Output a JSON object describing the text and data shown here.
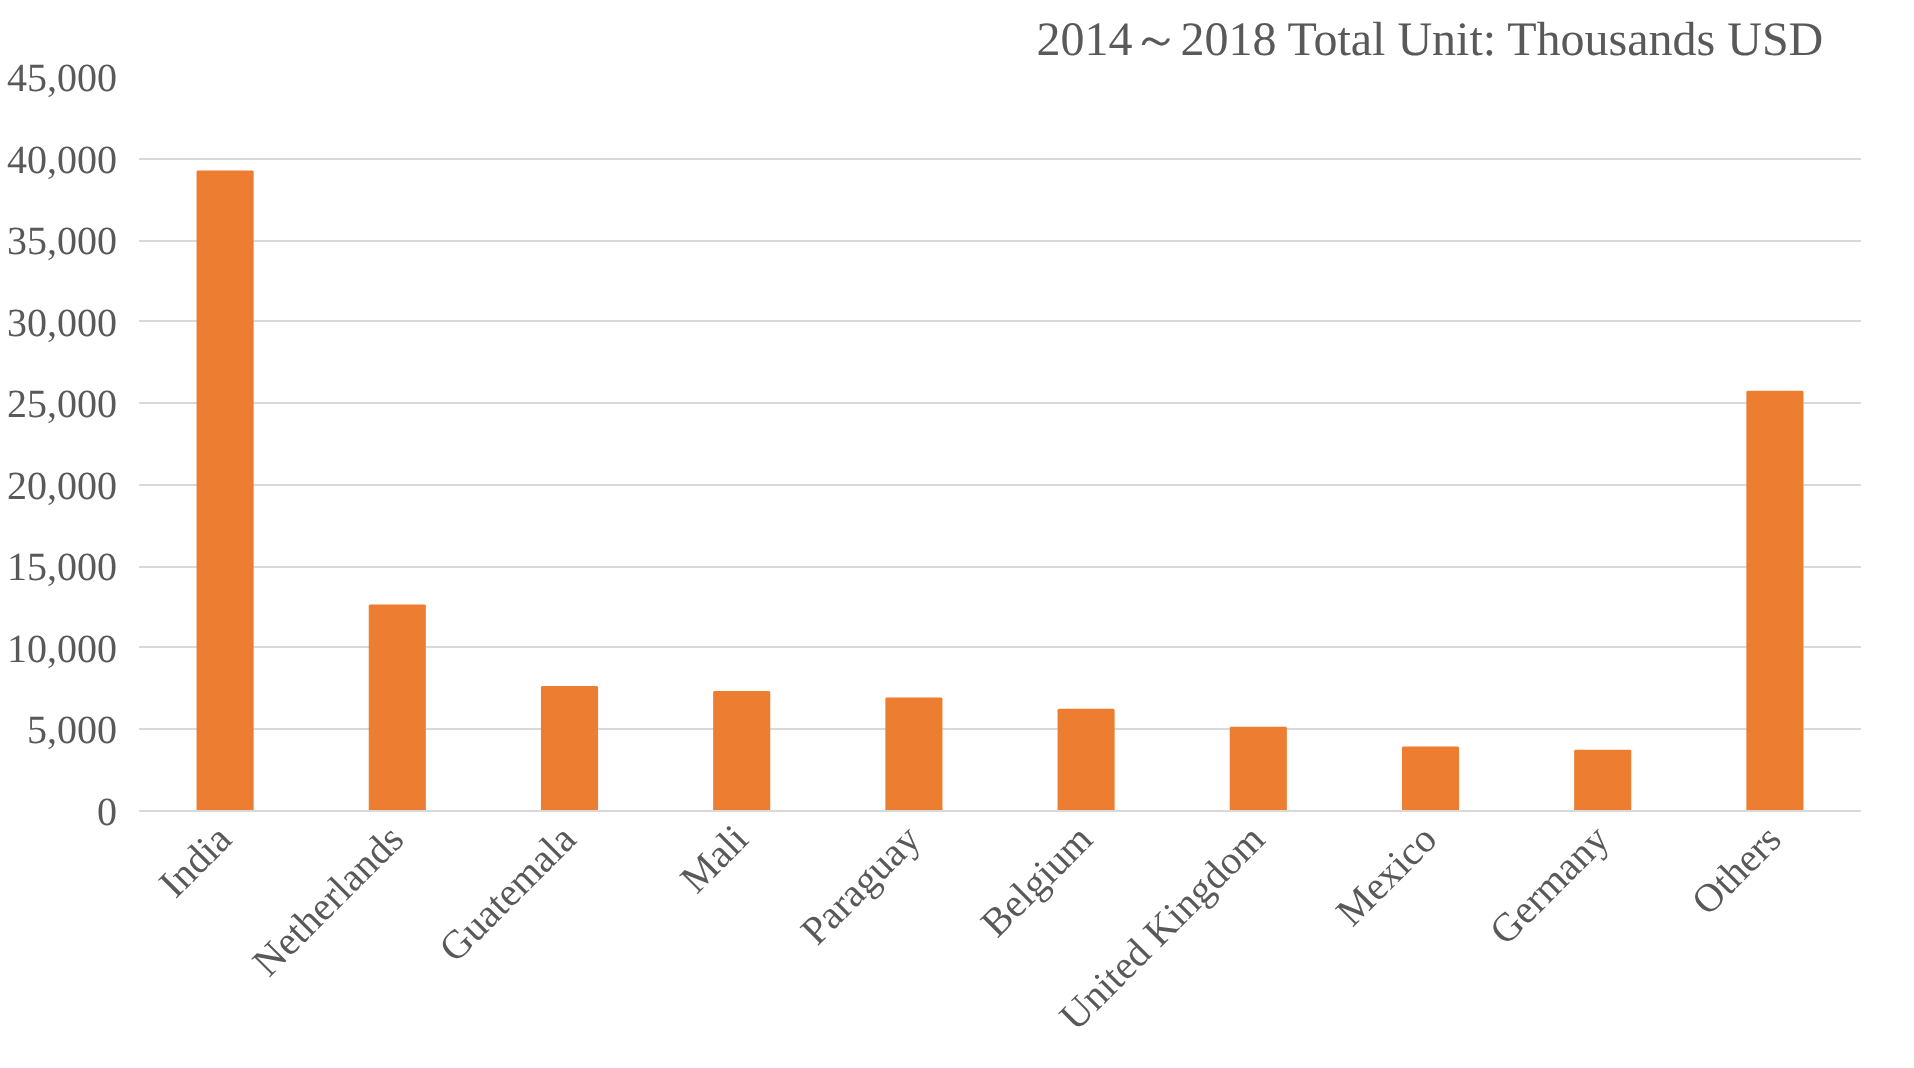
{
  "chart_data": {
    "type": "bar",
    "title": "2014～2018 Total",
    "annotations": [
      "Unit: Thousands USD"
    ],
    "categories": [
      "India",
      "Netherlands",
      "Guatemala",
      "Mali",
      "Paraguay",
      "Belgium",
      "United Kingdom",
      "Mexico",
      "Germany",
      "Others"
    ],
    "values": [
      39200,
      12600,
      7600,
      7300,
      6900,
      6200,
      5100,
      3900,
      3700,
      25700
    ],
    "color": "#ed7d31",
    "ylim": [
      0,
      45000
    ],
    "yticks": [
      {
        "value": 0,
        "label": "0"
      },
      {
        "value": 5000,
        "label": "5,000"
      },
      {
        "value": 10000,
        "label": "10,000"
      },
      {
        "value": 15000,
        "label": "15,000"
      },
      {
        "value": 20000,
        "label": "20,000"
      },
      {
        "value": 25000,
        "label": "25,000"
      },
      {
        "value": 30000,
        "label": "30,000"
      },
      {
        "value": 35000,
        "label": "35,000"
      },
      {
        "value": 40000,
        "label": "40,000"
      },
      {
        "value": 45000,
        "label": "45,000"
      }
    ],
    "grid": "y"
  }
}
